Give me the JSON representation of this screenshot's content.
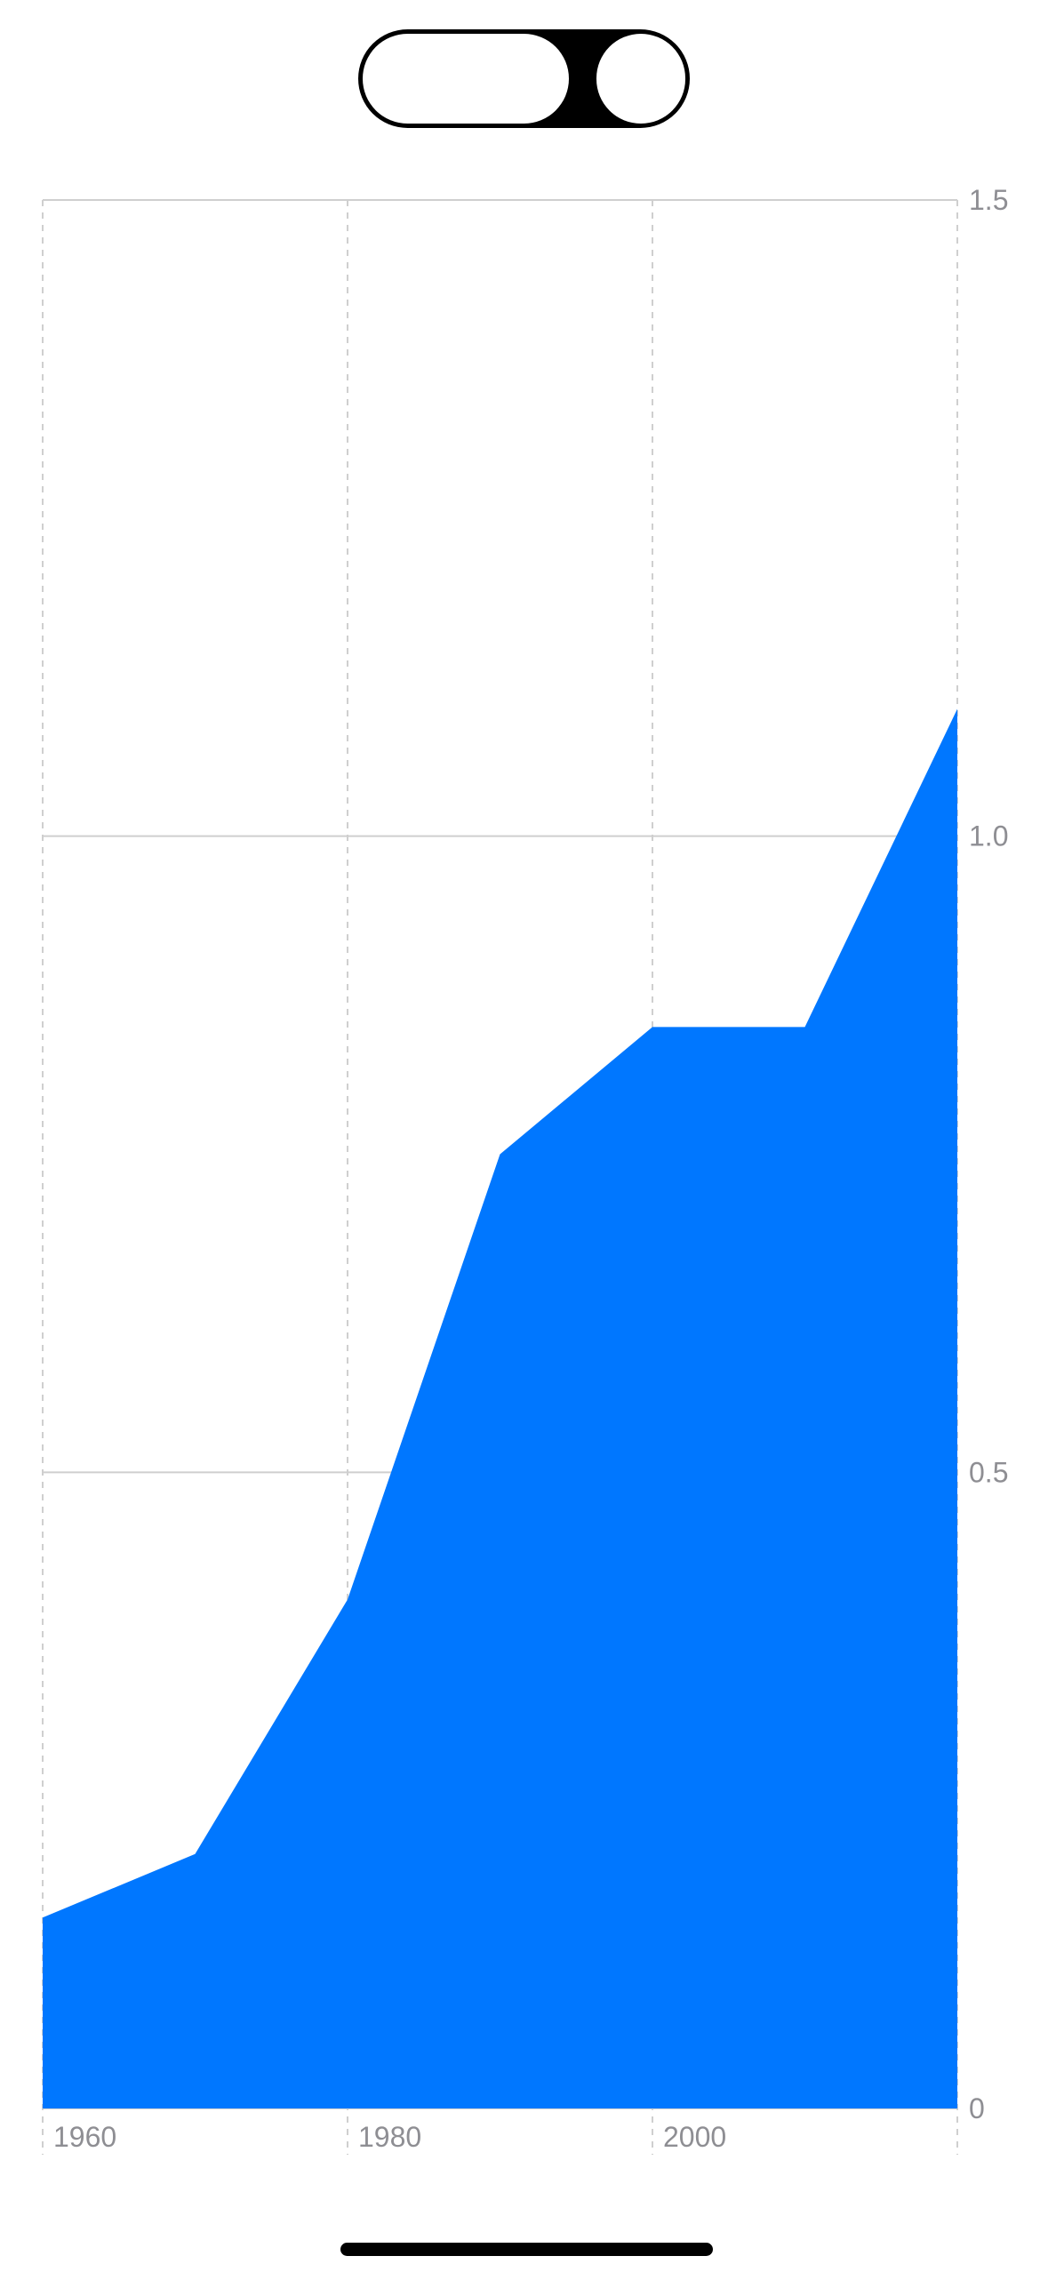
{
  "toggle": {
    "options": [
      "",
      ""
    ],
    "selected_index": 0
  },
  "colors": {
    "area_fill": "#0077ff",
    "grid": "#cfcfcf",
    "tick_label": "#8e8e93",
    "toggle_track": "#000000",
    "background": "#ffffff"
  },
  "chart_data": {
    "type": "area",
    "title": "",
    "xlabel": "",
    "ylabel": "",
    "x_ticks": [
      "1960",
      "1980",
      "2000"
    ],
    "y_ticks": [
      "0",
      "0.5",
      "1.0",
      "1.5"
    ],
    "xlim": [
      1960,
      2020
    ],
    "ylim": [
      0,
      1.5
    ],
    "y_axis_side": "right",
    "grid": true,
    "series": [
      {
        "x": [
          1960,
          1970,
          1980,
          1990,
          2000,
          2010,
          2020
        ],
        "values": [
          0.15,
          0.2,
          0.4,
          0.75,
          0.85,
          0.85,
          1.1
        ]
      }
    ]
  }
}
